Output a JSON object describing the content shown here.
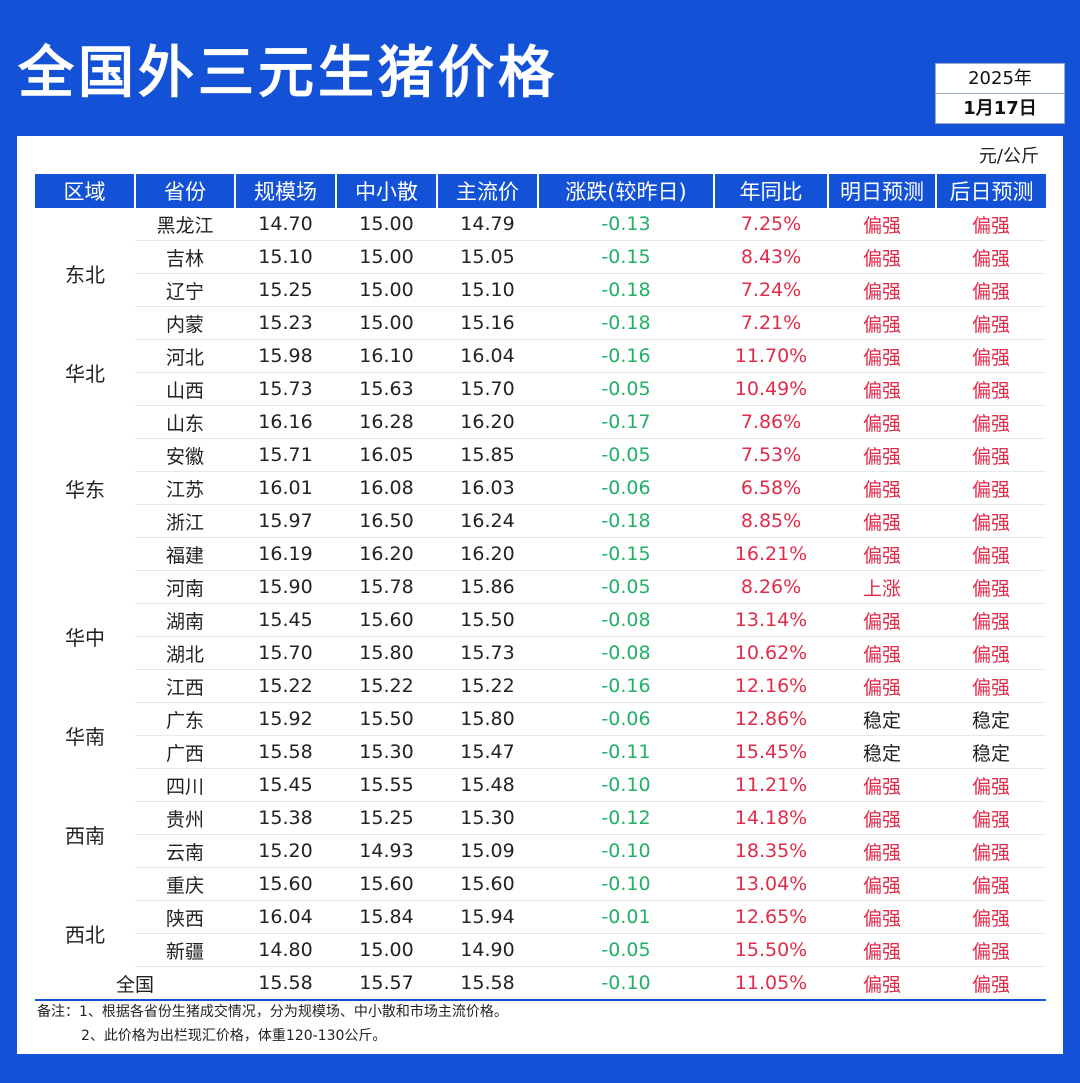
{
  "title": "全国外三元生猪价格",
  "date": {
    "year": "2025年",
    "day": "1月17日"
  },
  "unit": "元/公斤",
  "headers": [
    "区域",
    "省份",
    "规模场",
    "中小散",
    "主流价",
    "涨跌(较昨日)",
    "年同比",
    "明日预测",
    "后日预测"
  ],
  "regions": [
    {
      "name": "东北",
      "span": 4
    },
    {
      "name": "华北",
      "span": 2
    },
    {
      "name": "华东",
      "span": 5
    },
    {
      "name": "华中",
      "span": 4
    },
    {
      "name": "华南",
      "span": 2
    },
    {
      "name": "西南",
      "span": 4
    },
    {
      "name": "西北",
      "span": 2
    }
  ],
  "rows": [
    [
      "黑龙江",
      "14.70",
      "15.00",
      "14.79",
      "-0.13",
      "7.25%",
      "偏强",
      "偏强"
    ],
    [
      "吉林",
      "15.10",
      "15.00",
      "15.05",
      "-0.15",
      "8.43%",
      "偏强",
      "偏强"
    ],
    [
      "辽宁",
      "15.25",
      "15.00",
      "15.10",
      "-0.18",
      "7.24%",
      "偏强",
      "偏强"
    ],
    [
      "内蒙",
      "15.23",
      "15.00",
      "15.16",
      "-0.18",
      "7.21%",
      "偏强",
      "偏强"
    ],
    [
      "河北",
      "15.98",
      "16.10",
      "16.04",
      "-0.16",
      "11.70%",
      "偏强",
      "偏强"
    ],
    [
      "山西",
      "15.73",
      "15.63",
      "15.70",
      "-0.05",
      "10.49%",
      "偏强",
      "偏强"
    ],
    [
      "山东",
      "16.16",
      "16.28",
      "16.20",
      "-0.17",
      "7.86%",
      "偏强",
      "偏强"
    ],
    [
      "安徽",
      "15.71",
      "16.05",
      "15.85",
      "-0.05",
      "7.53%",
      "偏强",
      "偏强"
    ],
    [
      "江苏",
      "16.01",
      "16.08",
      "16.03",
      "-0.06",
      "6.58%",
      "偏强",
      "偏强"
    ],
    [
      "浙江",
      "15.97",
      "16.50",
      "16.24",
      "-0.18",
      "8.85%",
      "偏强",
      "偏强"
    ],
    [
      "福建",
      "16.19",
      "16.20",
      "16.20",
      "-0.15",
      "16.21%",
      "偏强",
      "偏强"
    ],
    [
      "河南",
      "15.90",
      "15.78",
      "15.86",
      "-0.05",
      "8.26%",
      "上涨",
      "偏强"
    ],
    [
      "湖南",
      "15.45",
      "15.60",
      "15.50",
      "-0.08",
      "13.14%",
      "偏强",
      "偏强"
    ],
    [
      "湖北",
      "15.70",
      "15.80",
      "15.73",
      "-0.08",
      "10.62%",
      "偏强",
      "偏强"
    ],
    [
      "江西",
      "15.22",
      "15.22",
      "15.22",
      "-0.16",
      "12.16%",
      "偏强",
      "偏强"
    ],
    [
      "广东",
      "15.92",
      "15.50",
      "15.80",
      "-0.06",
      "12.86%",
      "稳定",
      "稳定"
    ],
    [
      "广西",
      "15.58",
      "15.30",
      "15.47",
      "-0.11",
      "15.45%",
      "稳定",
      "稳定"
    ],
    [
      "四川",
      "15.45",
      "15.55",
      "15.48",
      "-0.10",
      "11.21%",
      "偏强",
      "偏强"
    ],
    [
      "贵州",
      "15.38",
      "15.25",
      "15.30",
      "-0.12",
      "14.18%",
      "偏强",
      "偏强"
    ],
    [
      "云南",
      "15.20",
      "14.93",
      "15.09",
      "-0.10",
      "18.35%",
      "偏强",
      "偏强"
    ],
    [
      "重庆",
      "15.60",
      "15.60",
      "15.60",
      "-0.10",
      "13.04%",
      "偏强",
      "偏强"
    ],
    [
      "陕西",
      "16.04",
      "15.84",
      "15.94",
      "-0.01",
      "12.65%",
      "偏强",
      "偏强"
    ],
    [
      "新疆",
      "14.80",
      "15.00",
      "14.90",
      "-0.05",
      "15.50%",
      "偏强",
      "偏强"
    ]
  ],
  "national": [
    "全国",
    "15.58",
    "15.57",
    "15.58",
    "-0.10",
    "11.05%",
    "偏强",
    "偏强"
  ],
  "notes": [
    "备注：1、根据各省份生猪成交情况，分为规模场、中小散和市场主流价格。",
    "2、此价格为出栏现汇价格，体重120-130公斤。"
  ],
  "colors": {
    "brand_blue": "#1352d6",
    "down_green": "#21b065",
    "up_red": "#e02c4a"
  }
}
